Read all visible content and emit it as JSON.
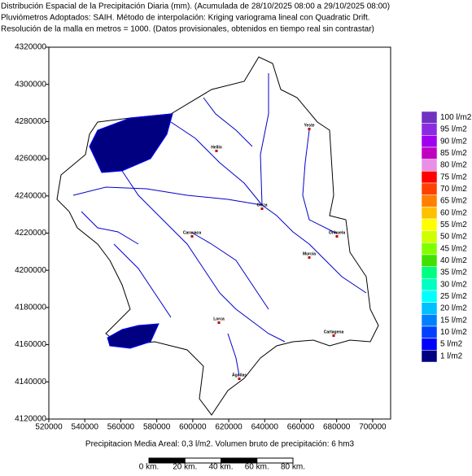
{
  "header": {
    "lines": [
      "Distribución Espacial de la Precipitación Diaria (mm). (Acumulada de 28/10/2025 08:00 a 29/10/2025 08:00)",
      "Pluviómetros Adoptados: SAIH.  Método de interpolación: Kriging variograma lineal con Quadratic Drift.",
      "Resolución de la malla en metros = 1000. (Datos provisionales, obtenidos en tiempo real sin contrastar)"
    ]
  },
  "map": {
    "xlim": [
      520000,
      710000
    ],
    "ylim": [
      4120000,
      4320000
    ],
    "xticks": [
      520000,
      540000,
      560000,
      580000,
      600000,
      620000,
      640000,
      660000,
      680000,
      700000
    ],
    "yticks": [
      4120000,
      4140000,
      4160000,
      4180000,
      4200000,
      4220000,
      4240000,
      4260000,
      4280000,
      4300000,
      4320000
    ],
    "cities": [
      "Yeste",
      "Hellín",
      "Cieza",
      "Caravaca",
      "Orihuela",
      "Murcia",
      "Lorca",
      "Cartagena",
      "Águilas"
    ]
  },
  "legend": [
    {
      "label": "100 l/m2",
      "color": "#7030c0"
    },
    {
      "label": "95 l/m2",
      "color": "#8a2be2"
    },
    {
      "label": "90 l/m2",
      "color": "#a000f0"
    },
    {
      "label": "85 l/m2",
      "color": "#c000c0"
    },
    {
      "label": "80 l/m2",
      "color": "#e890e8"
    },
    {
      "label": "75 l/m2",
      "color": "#ff0000"
    },
    {
      "label": "70 l/m2",
      "color": "#ff4000"
    },
    {
      "label": "65 l/m2",
      "color": "#ff8000"
    },
    {
      "label": "60 l/m2",
      "color": "#ffc000"
    },
    {
      "label": "55 l/m2",
      "color": "#ffff00"
    },
    {
      "label": "50 l/m2",
      "color": "#d0ff00"
    },
    {
      "label": "45 l/m2",
      "color": "#80ff00"
    },
    {
      "label": "40 l/m2",
      "color": "#40e000"
    },
    {
      "label": "35 l/m2",
      "color": "#00ff80"
    },
    {
      "label": "30 l/m2",
      "color": "#00ffc0"
    },
    {
      "label": "25 l/m2",
      "color": "#00ffff"
    },
    {
      "label": "20 l/m2",
      "color": "#00c0ff"
    },
    {
      "label": "15 l/m2",
      "color": "#0080ff"
    },
    {
      "label": "10 l/m2",
      "color": "#0040ff"
    },
    {
      "label": "5 l/m2",
      "color": "#0000ff"
    },
    {
      "label": "1 l/m2",
      "color": "#000080"
    }
  ],
  "footer": "Precipitacion Media Areal: 0,3 l/m2. Volumen bruto de precipitación: 6 hm3",
  "scale_bar": [
    "0 km.",
    "20 km.",
    "40 km.",
    "60 km.",
    "80 km."
  ]
}
